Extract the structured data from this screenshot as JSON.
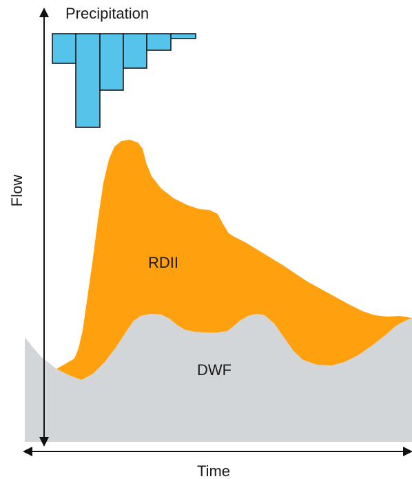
{
  "labels": {
    "precipitation": "Precipitation",
    "flow": "Flow",
    "time": "Time",
    "rdii": "RDII",
    "dwf": "DWF"
  },
  "colors": {
    "dwf": "#d3d6d8",
    "rdii": "#ffa10e",
    "precipitation": "#56c3ea",
    "outline": "#1a1a1a",
    "axis": "#111111"
  }
}
